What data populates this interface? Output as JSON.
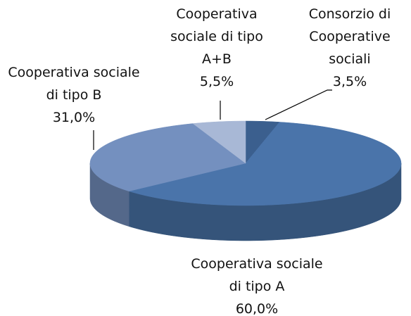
{
  "chart_data": {
    "type": "pie3d",
    "categories": [
      "Consorzio di Cooperative sociali",
      "Cooperativa sociale di tipo A",
      "Cooperativa sociale di tipo B",
      "Cooperativa sociale di tipo A+B"
    ],
    "values": [
      3.5,
      60.0,
      31.0,
      5.5
    ],
    "value_labels": [
      "3,5%",
      "60,0%",
      "31,0%",
      "5,5%"
    ],
    "colors": [
      "#3b5f8e",
      "#4a74aa",
      "#7490bf",
      "#a8b8d6"
    ]
  }
}
